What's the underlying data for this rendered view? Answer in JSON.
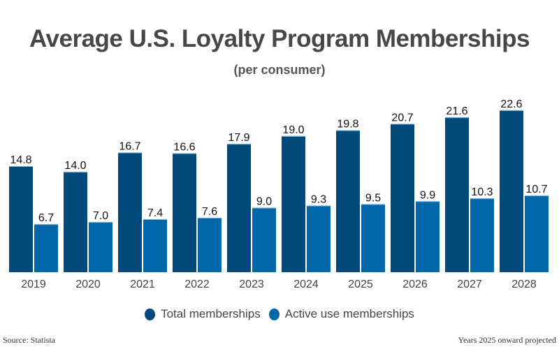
{
  "chart_data": {
    "type": "bar",
    "title": "Average U.S. Loyalty Program Memberships",
    "subtitle": "(per consumer)",
    "xlabel": "",
    "ylabel": "",
    "categories": [
      "2019",
      "2020",
      "2021",
      "2022",
      "2023",
      "2024",
      "2025",
      "2026",
      "2027",
      "2028"
    ],
    "series": [
      {
        "name": "Total memberships",
        "color": "#00497a",
        "values": [
          14.8,
          14.0,
          16.7,
          16.6,
          17.9,
          19.0,
          19.8,
          20.7,
          21.6,
          22.6
        ]
      },
      {
        "name": "Active use memberships",
        "color": "#0067a8",
        "values": [
          6.7,
          7.0,
          7.4,
          7.6,
          9.0,
          9.3,
          9.5,
          9.9,
          10.3,
          10.7
        ]
      }
    ],
    "ylim": [
      0,
      25
    ],
    "grid": false,
    "legend_position": "bottom",
    "data_labels": true
  },
  "footer": {
    "source": "Source: Statista",
    "note": "Years 2025 onward projected"
  }
}
